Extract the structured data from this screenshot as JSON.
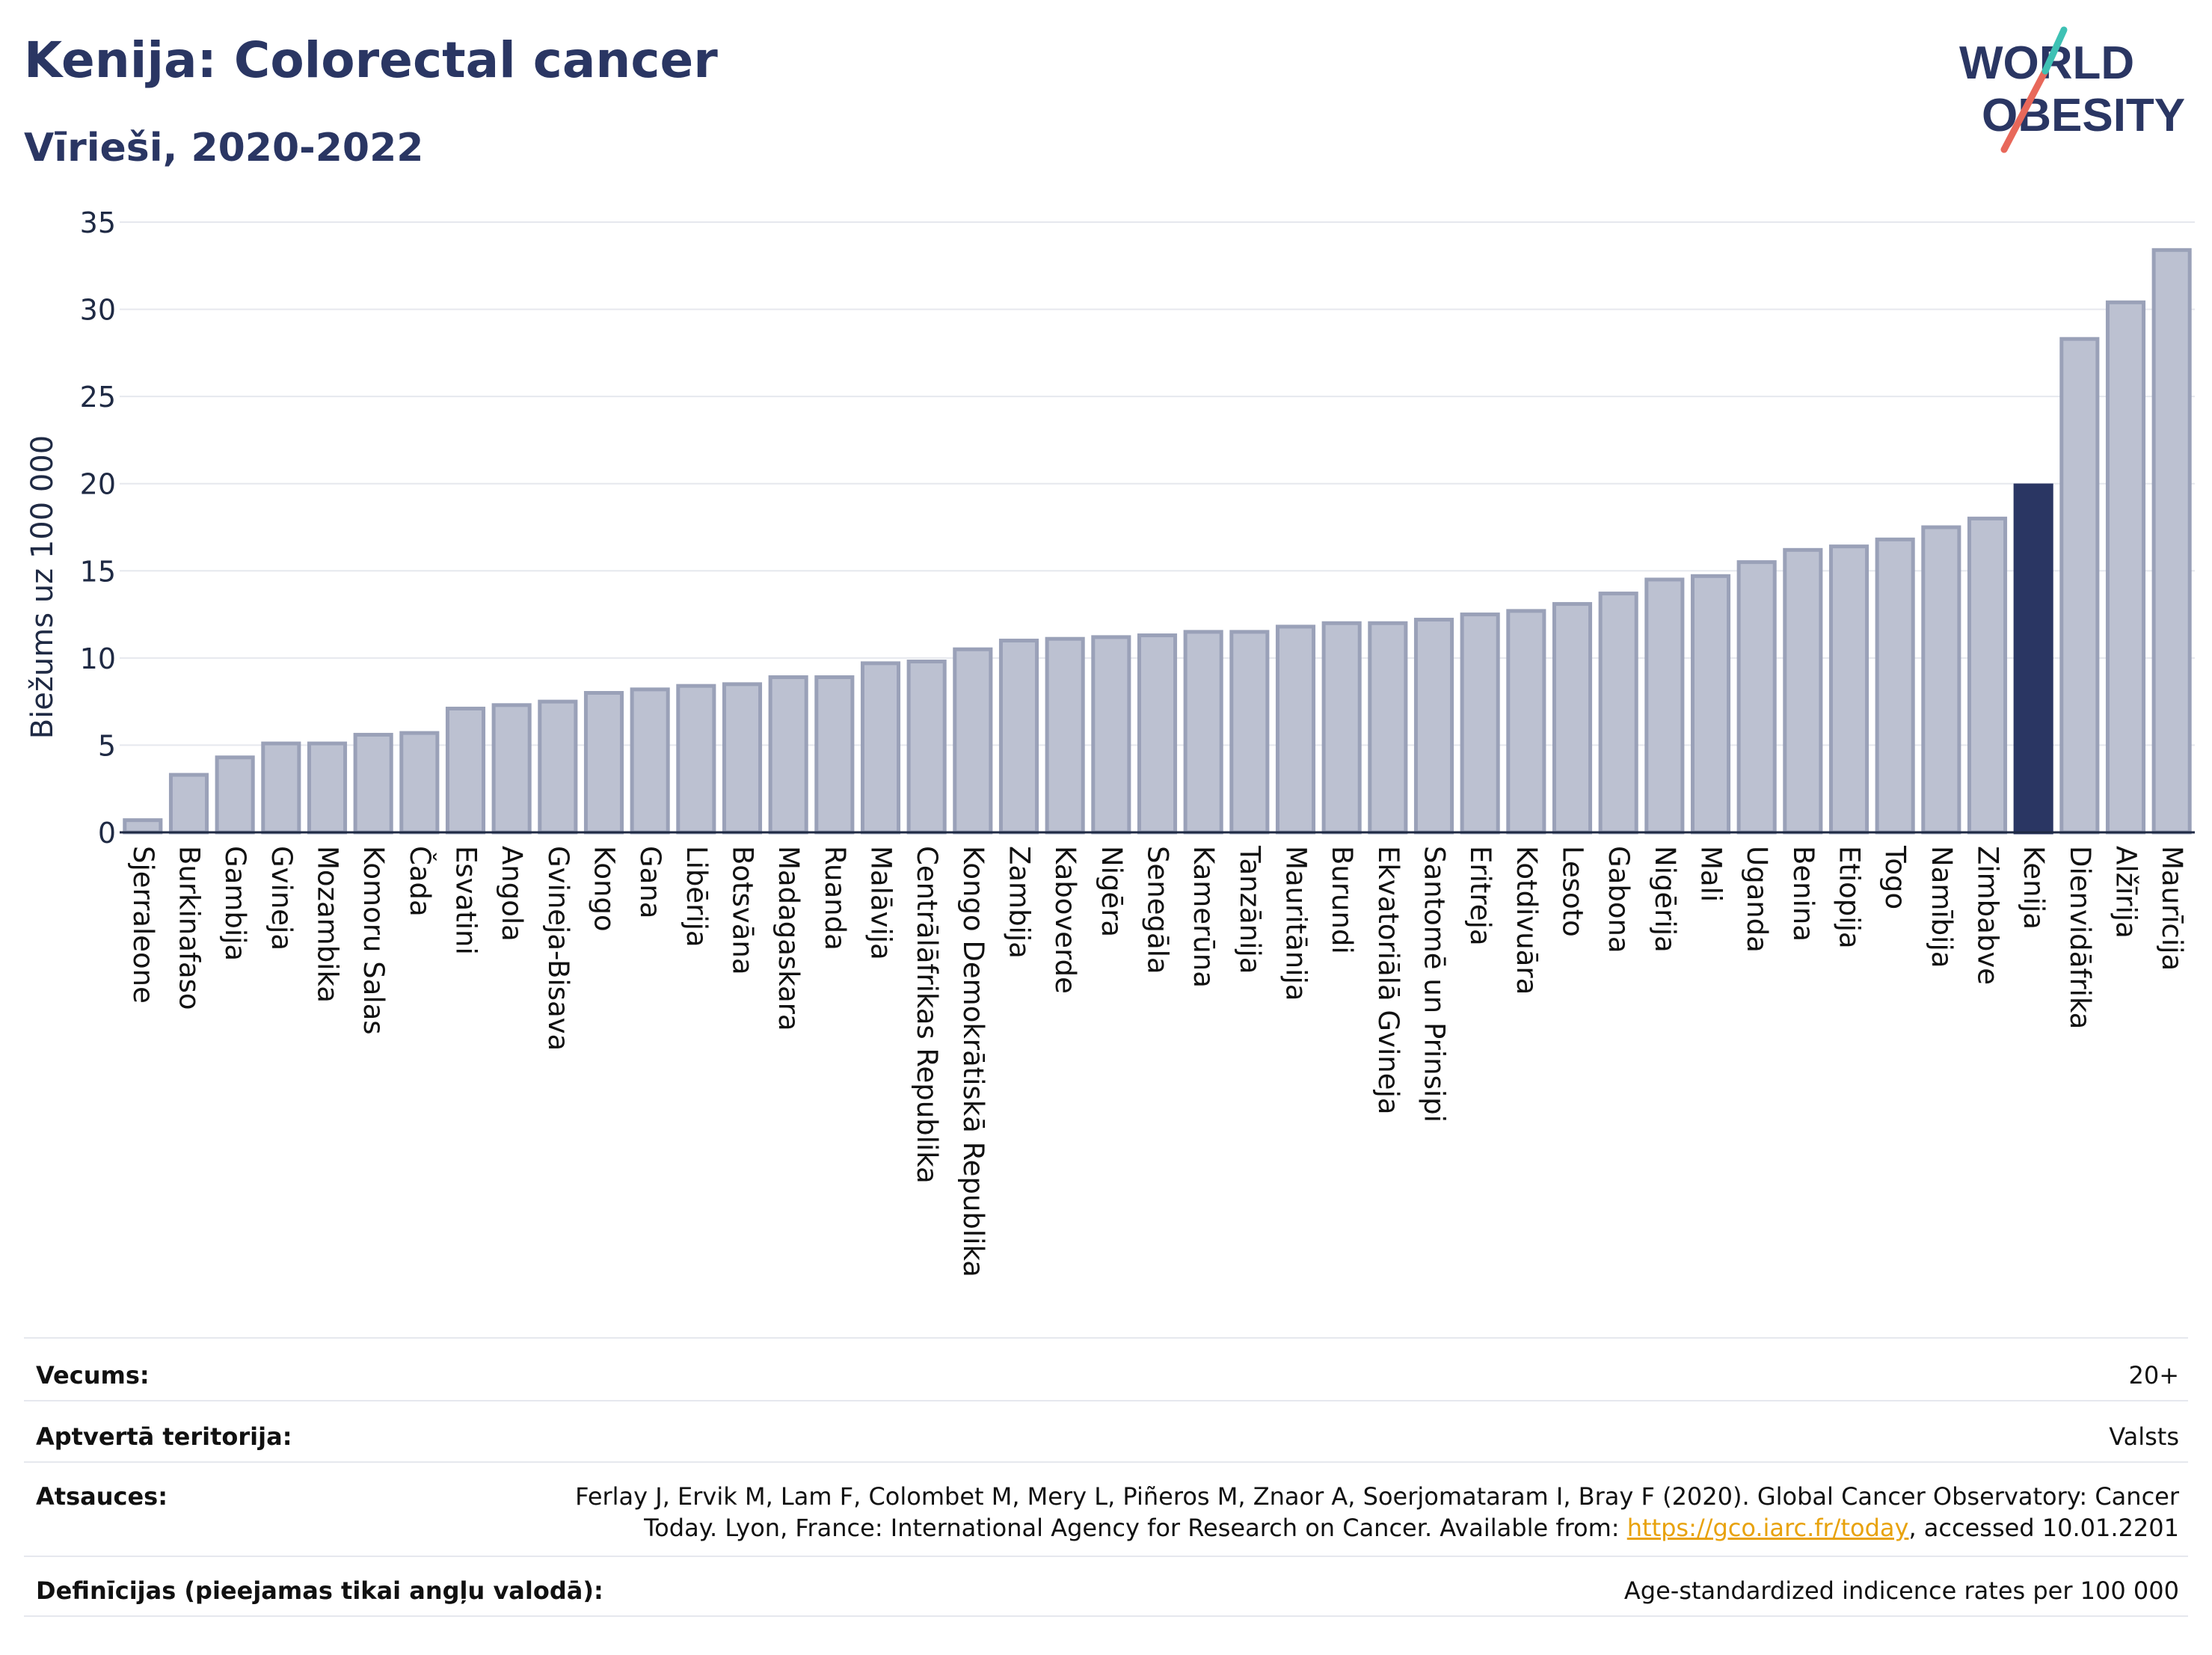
{
  "header": {
    "title": "Kenija: Colorectal cancer",
    "subtitle": "Vīrieši, 2020-2022"
  },
  "logo": {
    "line1": "WORLD",
    "line2": "OBESITY"
  },
  "colors": {
    "bar": "#bcc1d1",
    "bar_edge": "#9aa1b8",
    "highlight": "#2a3663",
    "grid": "#e6e8ee",
    "axis": "#1f2a44"
  },
  "chart_data": {
    "type": "bar",
    "ylabel": "Biežums uz 100 000",
    "ylim": [
      0,
      35
    ],
    "yticks": [
      0,
      5,
      10,
      15,
      20,
      25,
      30,
      35
    ],
    "grid": true,
    "highlight": "Kenija",
    "categories": [
      "Sjerraleone",
      "Burkinafaso",
      "Gambija",
      "Gvineja",
      "Mozambika",
      "Komoru Salas",
      "Čada",
      "Esvatini",
      "Angola",
      "Gvineja-Bisava",
      "Kongo",
      "Gana",
      "Libērija",
      "Botsvāna",
      "Madagaskara",
      "Ruanda",
      "Malāvija",
      "Centrālāfrikas Republika",
      "Kongo Demokrātiskā Republika",
      "Zambija",
      "Kaboverde",
      "Nigēra",
      "Senegāla",
      "Kamerūna",
      "Tanzānija",
      "Mauritānija",
      "Burundi",
      "Ekvatoriālā Gvineja",
      "Santomē un Prinsipi",
      "Eritreja",
      "Kotdivuāra",
      "Lesoto",
      "Gabona",
      "Nigērija",
      "Mali",
      "Uganda",
      "Benina",
      "Etiopija",
      "Togo",
      "Namībija",
      "Zimbabve",
      "Kenija",
      "Dienvidāfrika",
      "Alžīrija",
      "Maurīcija"
    ],
    "values": [
      0.7,
      3.3,
      4.3,
      5.1,
      5.1,
      5.6,
      5.7,
      7.1,
      7.3,
      7.5,
      8.0,
      8.2,
      8.4,
      8.5,
      8.9,
      8.9,
      9.7,
      9.8,
      10.5,
      11.0,
      11.1,
      11.2,
      11.3,
      11.5,
      11.5,
      11.8,
      12.0,
      12.0,
      12.2,
      12.5,
      12.7,
      13.1,
      13.7,
      14.5,
      14.7,
      15.5,
      16.2,
      16.4,
      16.8,
      17.5,
      18.0,
      19.9,
      28.3,
      30.4,
      33.4
    ]
  },
  "info": {
    "age_label": "Vecums:",
    "age_value": "20+",
    "coverage_label": "Aptvertā teritorija:",
    "coverage_value": "Valsts",
    "refs_label": "Atsauces:",
    "refs_line1": "Ferlay J, Ervik M, Lam F, Colombet M, Mery L, Piñeros M, Znaor A, Soerjomataram I, Bray F (2020). Global Cancer Observatory: Cancer",
    "refs_line2_a": "Today. Lyon, France: International Agency for Research on Cancer. Available from: ",
    "refs_link": "https://gco.iarc.fr/today",
    "refs_line2_b": ", accessed 10.01.2201",
    "defs_label": "Definīcijas (pieejamas tikai angļu valodā):",
    "defs_value": "Age-standardized indicence rates per 100 000"
  }
}
